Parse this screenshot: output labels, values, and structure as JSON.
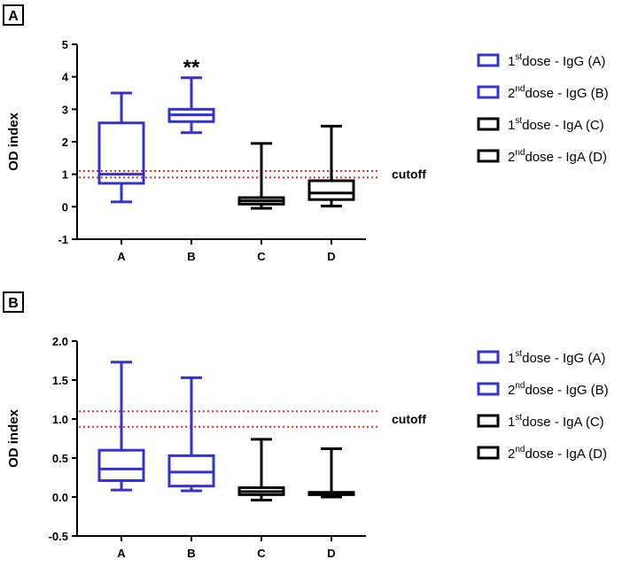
{
  "chart_data": [
    {
      "type": "box",
      "panel_label": "A",
      "ylabel": "OD index",
      "xlabel": "",
      "ylim": [
        -1,
        5
      ],
      "yticks": [
        -1,
        0,
        1,
        2,
        3,
        4,
        5
      ],
      "categories": [
        "A",
        "B",
        "C",
        "D"
      ],
      "boxes": [
        {
          "category": "A",
          "series": "1st dose - IgG (A)",
          "color": "#3333cc",
          "min": 0.15,
          "q1": 0.72,
          "median": 1.0,
          "q3": 2.58,
          "max": 3.5
        },
        {
          "category": "B",
          "series": "2nd dose - IgG (B)",
          "color": "#3333cc",
          "min": 2.28,
          "q1": 2.62,
          "median": 2.83,
          "q3": 3.0,
          "max": 3.97
        },
        {
          "category": "C",
          "series": "1st dose - IgA (C)",
          "color": "#000000",
          "min": -0.05,
          "q1": 0.08,
          "median": 0.18,
          "q3": 0.28,
          "max": 1.95
        },
        {
          "category": "D",
          "series": "2nd dose - IgA (D)",
          "color": "#000000",
          "min": 0.02,
          "q1": 0.22,
          "median": 0.42,
          "q3": 0.8,
          "max": 2.48
        }
      ],
      "cutoff_lines": [
        0.9,
        1.1
      ],
      "cutoff_label": "cutoff",
      "significance": {
        "category": "B",
        "label": "**"
      }
    },
    {
      "type": "box",
      "panel_label": "B",
      "ylabel": "OD index",
      "xlabel": "",
      "ylim": [
        -0.5,
        2.0
      ],
      "yticks": [
        "-0.5",
        "0.0",
        "0.5",
        "1.0",
        "1.5",
        "2.0"
      ],
      "categories": [
        "A",
        "B",
        "C",
        "D"
      ],
      "boxes": [
        {
          "category": "A",
          "series": "1st dose - IgG (A)",
          "color": "#3333cc",
          "min": 0.09,
          "q1": 0.21,
          "median": 0.36,
          "q3": 0.6,
          "max": 1.73
        },
        {
          "category": "B",
          "series": "2nd dose - IgG (B)",
          "color": "#3333cc",
          "min": 0.08,
          "q1": 0.14,
          "median": 0.32,
          "q3": 0.53,
          "max": 1.53
        },
        {
          "category": "C",
          "series": "1st dose - IgA (C)",
          "color": "#000000",
          "min": -0.04,
          "q1": 0.03,
          "median": 0.07,
          "q3": 0.12,
          "max": 0.74
        },
        {
          "category": "D",
          "series": "2nd dose - IgA (D)",
          "color": "#000000",
          "min": 0.0,
          "q1": 0.03,
          "median": 0.05,
          "q3": 0.06,
          "max": 0.62
        }
      ],
      "cutoff_lines": [
        0.9,
        1.1
      ],
      "cutoff_label": "cutoff"
    }
  ],
  "legend": [
    {
      "sup": "st",
      "prefix": "1",
      "text": "dose - IgG (A)",
      "color": "#3333cc"
    },
    {
      "sup": "nd",
      "prefix": "2",
      "text": "dose - IgG (B)",
      "color": "#3333cc"
    },
    {
      "sup": "st",
      "prefix": "1",
      "text": "dose - IgA (C)",
      "color": "#000000"
    },
    {
      "sup": "nd",
      "prefix": "2",
      "text": "dose - IgA (D)",
      "color": "#000000"
    }
  ],
  "colors": {
    "cutoff": "#e03030",
    "igg": "#3333cc",
    "iga": "#000000"
  }
}
